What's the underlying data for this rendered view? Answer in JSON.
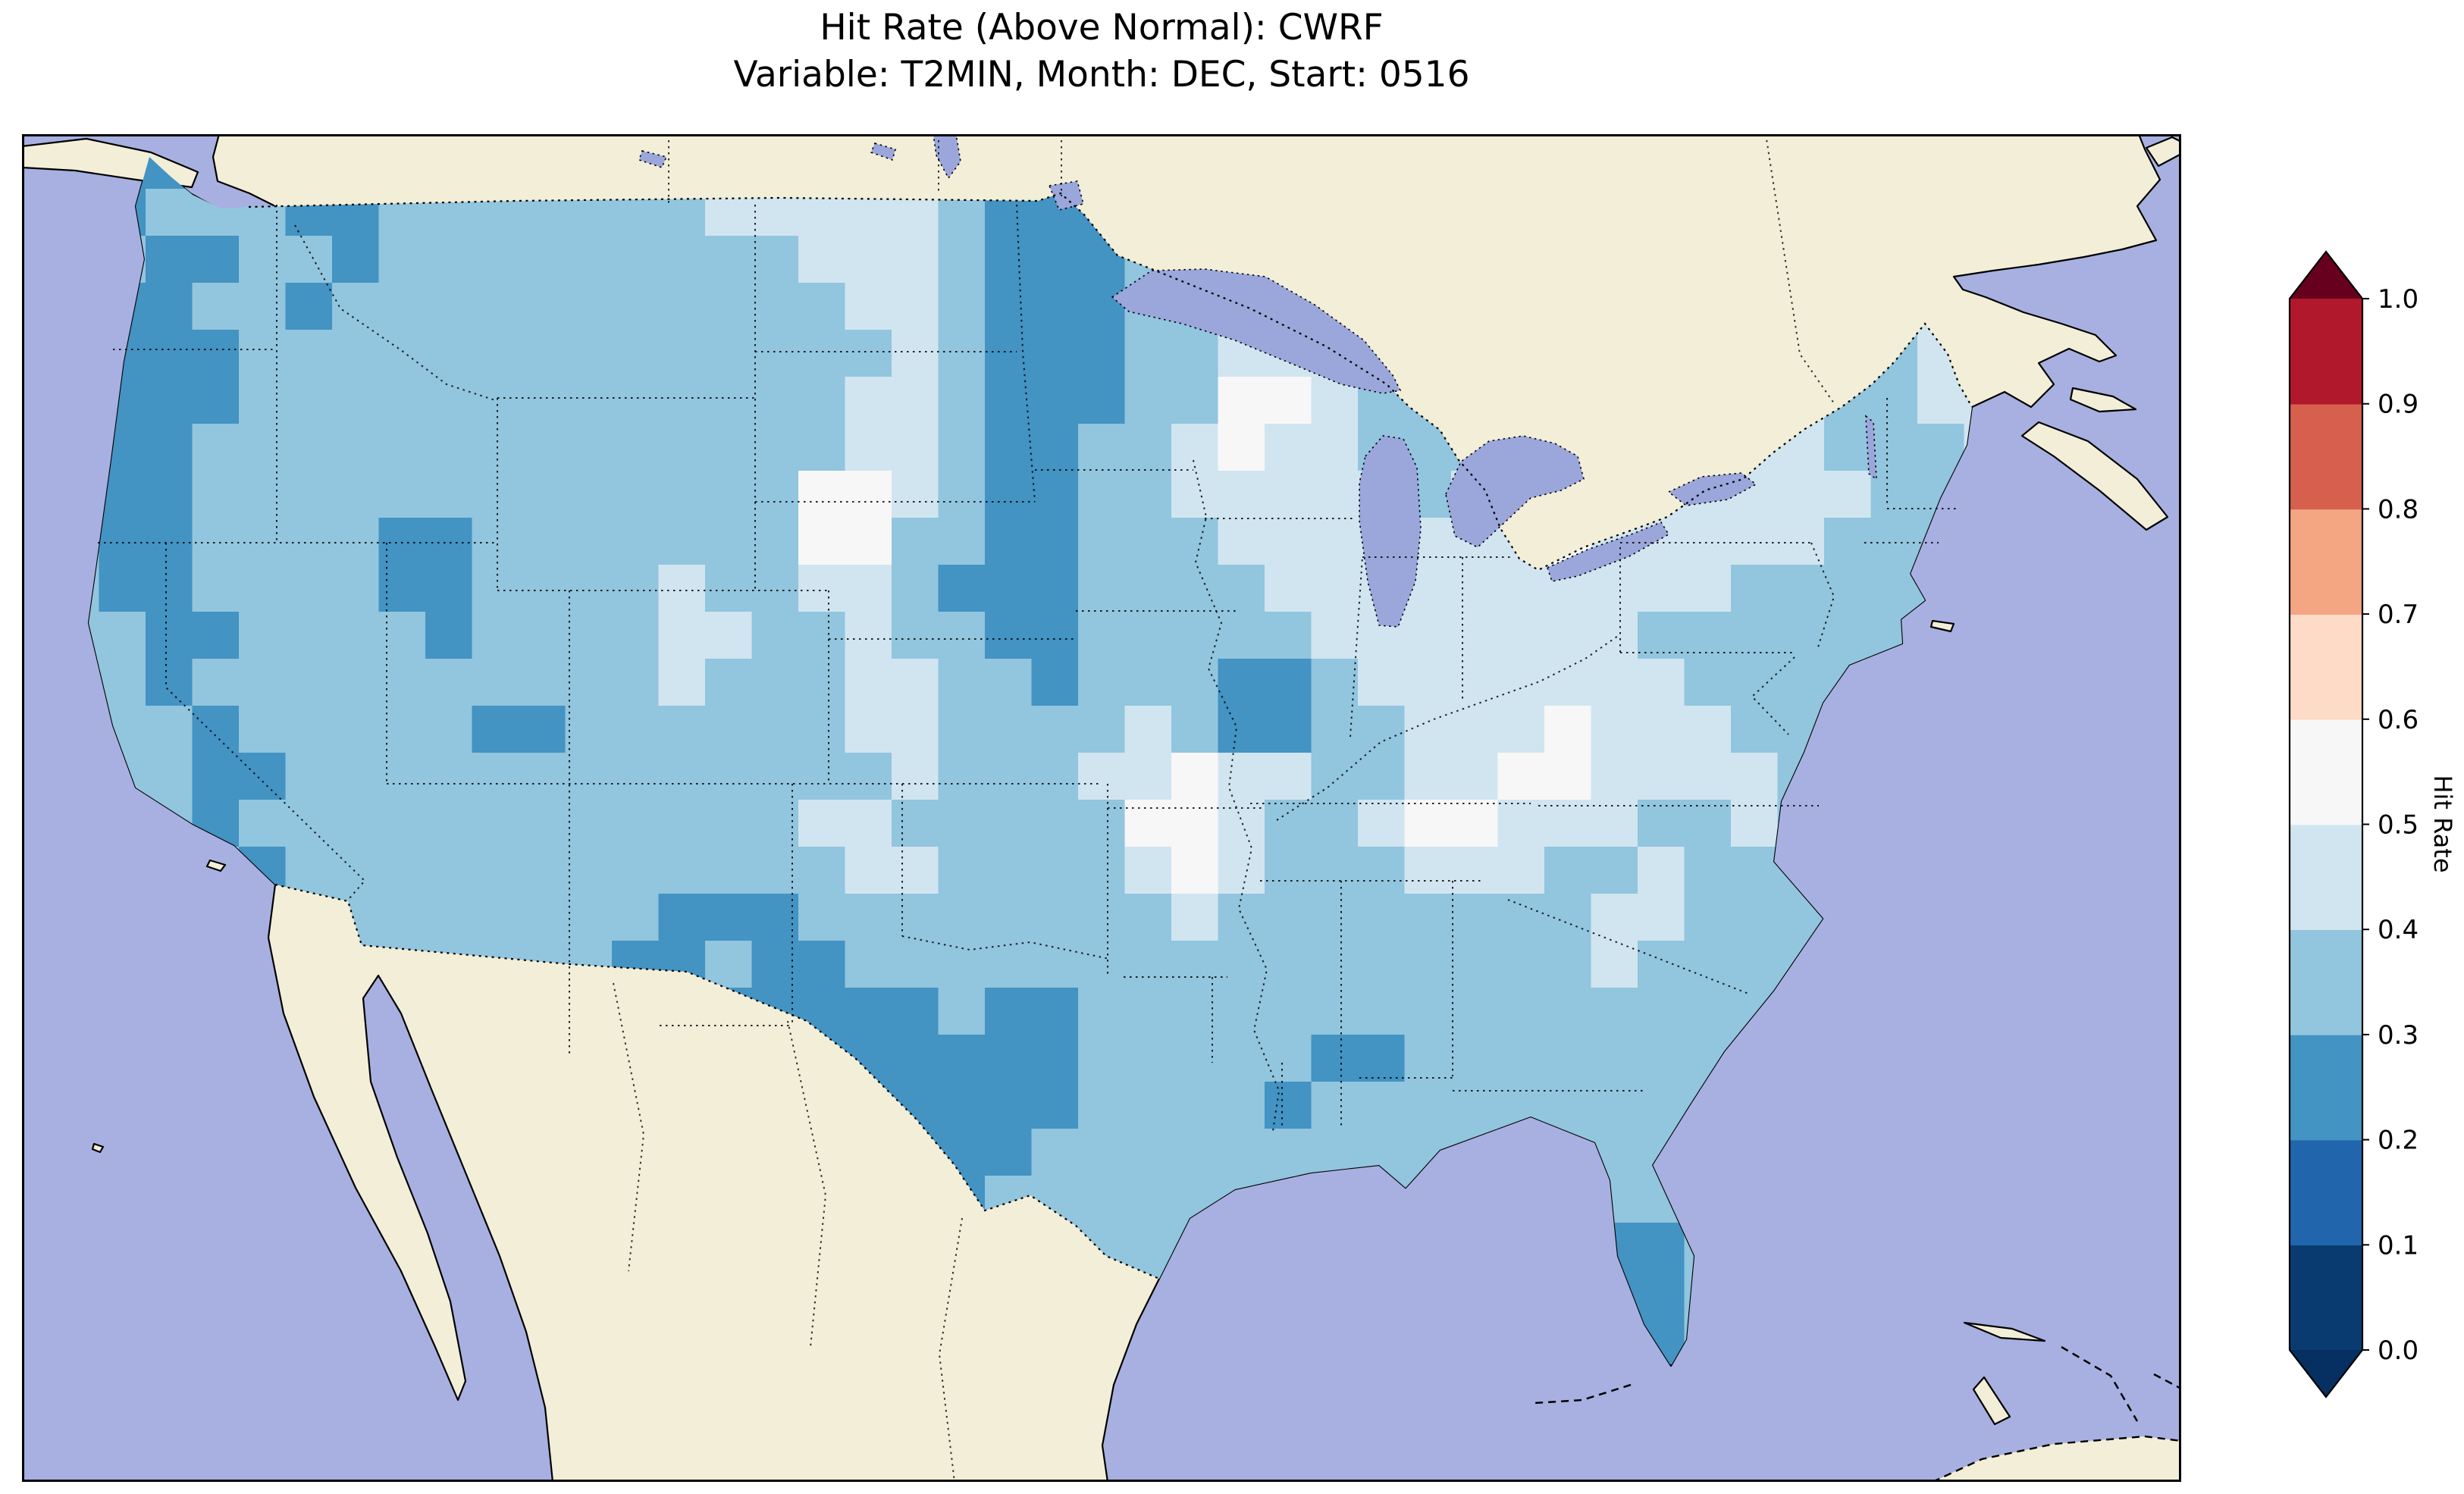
{
  "chart_data": {
    "type": "heatmap",
    "title": "Hit Rate (Above Normal): CWRF",
    "subtitle": "Variable: T2MIN, Month: DEC, Start: 0516",
    "model": "CWRF",
    "variable": "T2MIN",
    "month": "DEC",
    "start": "0516",
    "colorbar": {
      "label": "Hit Rate",
      "ticks": [
        "0.0",
        "0.1",
        "0.2",
        "0.3",
        "0.4",
        "0.5",
        "0.6",
        "0.7",
        "0.8",
        "0.9",
        "1.0"
      ],
      "range": [
        0.0,
        1.0
      ],
      "segment_colors_bottom_to_top": [
        "#0a3b70",
        "#2166ac",
        "#4393c3",
        "#92c5de",
        "#d1e5f0",
        "#f7f7f7",
        "#fddbc7",
        "#f4a582",
        "#d6604d",
        "#b2182b"
      ],
      "under_arrow_color": "#053061",
      "over_arrow_color": "#67001f",
      "extend": "both"
    },
    "grid": {
      "cols": 42,
      "rows": 26,
      "cell_value_bins": {
        "1": "0.1-0.2",
        "2": "0.2-0.3",
        "3": "0.3-0.4",
        "4": "0.4-0.5",
        "5": "0.5-0.6"
      },
      "rows_data": [
        "322333333333333334432222333333333344333333",
        "323332233333334444432222333343333444333344",
        "332233233333333344432223333334433344433344",
        "322332333333333334432223333444443344443344",
        "322233333333333333432223344433444344433344",
        "322233333333333334432223355433344444443344",
        "322333333333333334432233454433334444443334",
        "322333333333333355432233444443445544444333",
        "322333322333333355332233344444445444443333",
        "322333322333343344322233334444444444333333",
        "332233332333344334332233333444444433333333",
        "332333333333343334433233322344444443333333",
        "333233333223333334433334322334445444333333",
        "333223333333333333433344544334455444433333",
        "333233333333333344333335543345544433433333",
        "333323333333333334433334543334443343333333",
        "333333333333322233333333433333333443333333",
        "333333333333223223333333333333333433333333",
        "333333333333332222232233333333333333333333",
        "333333333333332222222233333223333333333333",
        "333333333333333222222233332333333333333333",
        "333333333333333322222333333333333333333333",
        "333333333333333332223333333333333333333333",
        "333333333333333333323333333333333223333333",
        "333333333333333333333333333333333223333333",
        "333333333333333333333333333333333323333333"
      ]
    }
  },
  "map": {
    "colors": {
      "ocean": "#a7b0e0",
      "land": "#f2eed8",
      "lake": "#9ba6db"
    },
    "features_shown": [
      "ocean",
      "north-america-landmass",
      "great-lakes",
      "us-state-borders",
      "canada-border",
      "mexico-border",
      "coastlines"
    ]
  }
}
